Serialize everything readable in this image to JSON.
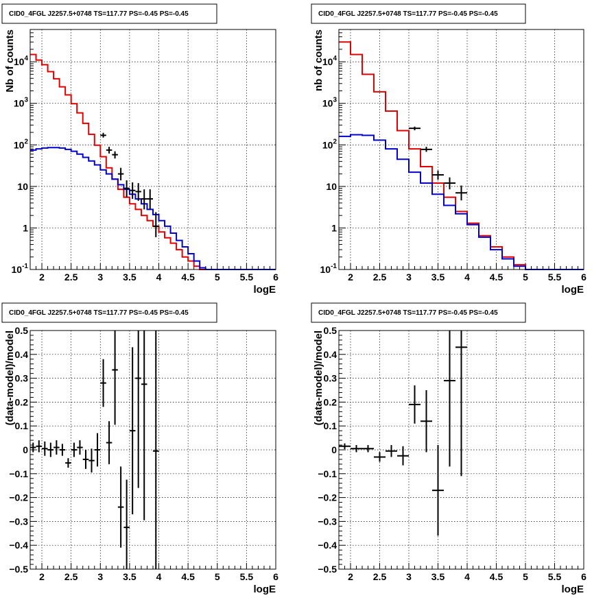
{
  "colors": {
    "data": "#000000",
    "total_model": "#e00000",
    "component_model": "#0000cc"
  },
  "chart_data": [
    {
      "type": "line",
      "title": "CID0_4FGL J2257.5+0748 TS=117.77 PS=-0.45 PS=-0.45",
      "xlabel": "logE",
      "ylabel": "Nb of counts",
      "log_y": true,
      "xlim": [
        1.8,
        6.0
      ],
      "ylim": [
        0.1,
        60000
      ],
      "grid": true,
      "x_ticks": [
        2,
        2.5,
        3,
        3.5,
        4,
        4.5,
        5,
        5.5,
        6
      ],
      "x_tick_labels": [
        "2",
        "2.5",
        "3",
        "3.5",
        "4",
        "4.5",
        "5",
        "5.5",
        "6"
      ],
      "y_ticks": [
        0.1,
        1,
        10,
        100,
        1000,
        10000
      ],
      "y_tick_labels": [
        "10-1",
        "1",
        "10",
        "10^2",
        "10^3",
        "10^4"
      ],
      "bin_edges": [
        1.8,
        1.9,
        2.0,
        2.1,
        2.2,
        2.3,
        2.4,
        2.5,
        2.6,
        2.7,
        2.8,
        2.9,
        3.0,
        3.1,
        3.2,
        3.3,
        3.4,
        3.5,
        3.6,
        3.7,
        3.8,
        3.9,
        4.0,
        4.1,
        4.2,
        4.3,
        4.4,
        4.5,
        4.6,
        4.7,
        4.8,
        4.9,
        5.0,
        5.1,
        5.2,
        5.3,
        5.4,
        5.5,
        5.6,
        5.7,
        5.8,
        5.9,
        6.0
      ],
      "series": [
        {
          "role": "total_model",
          "style": "step",
          "values": [
            15000,
            11000,
            8500,
            5800,
            3900,
            2500,
            1600,
            980,
            590,
            330,
            180,
            98,
            52,
            28,
            15,
            8.5,
            5.5,
            3.8,
            2.8,
            2.0,
            1.5,
            1.1,
            0.8,
            0.58,
            0.43,
            0.3,
            0.2,
            0.16,
            0.12,
            0.1,
            0.1,
            0.1,
            0.1,
            0.1,
            0.1,
            0.1,
            0.1,
            0.1,
            0.1,
            0.1,
            0.1,
            0.1
          ]
        },
        {
          "role": "component_model",
          "style": "step",
          "values": [
            75,
            80,
            84,
            86,
            86,
            84,
            78,
            70,
            60,
            50,
            41,
            33,
            25,
            20,
            15,
            11,
            8.5,
            6.5,
            5.0,
            3.8,
            2.8,
            2.1,
            1.5,
            1.1,
            0.75,
            0.5,
            0.35,
            0.24,
            0.16,
            0.11,
            0.1,
            0.1,
            0.1,
            0.1,
            0.1,
            0.1,
            0.1,
            0.1,
            0.1,
            0.1,
            0.1,
            0.1
          ]
        },
        {
          "role": "data",
          "style": "errorbar",
          "points": [
            {
              "x": 3.05,
              "y": 170,
              "xerr": 0.05,
              "ylo": 150,
              "yhi": 195
            },
            {
              "x": 3.15,
              "y": 75,
              "xerr": 0.05,
              "ylo": 62,
              "yhi": 90
            },
            {
              "x": 3.25,
              "y": 58,
              "xerr": 0.05,
              "ylo": 47,
              "yhi": 70
            },
            {
              "x": 3.35,
              "y": 20,
              "xerr": 0.05,
              "ylo": 14,
              "yhi": 28
            },
            {
              "x": 3.45,
              "y": 9,
              "xerr": 0.05,
              "ylo": 5.5,
              "yhi": 14
            },
            {
              "x": 3.55,
              "y": 8,
              "xerr": 0.05,
              "ylo": 5,
              "yhi": 12.5
            },
            {
              "x": 3.65,
              "y": 7.5,
              "xerr": 0.05,
              "ylo": 4.5,
              "yhi": 12
            },
            {
              "x": 3.75,
              "y": 5,
              "xerr": 0.05,
              "ylo": 2.8,
              "yhi": 8.5
            },
            {
              "x": 3.85,
              "y": 5,
              "xerr": 0.05,
              "ylo": 2.8,
              "yhi": 8.5
            },
            {
              "x": 3.95,
              "y": 1.1,
              "xerr": 0.05,
              "ylo": 0.6,
              "yhi": 2.4
            }
          ]
        }
      ]
    },
    {
      "type": "line",
      "title": "CID0_4FGL J2257.5+0748 TS=117.77 PS=-0.45 PS=-0.45",
      "xlabel": "logE",
      "ylabel": "nb of counts",
      "log_y": true,
      "xlim": [
        1.8,
        6.0
      ],
      "ylim": [
        0.1,
        60000
      ],
      "grid": true,
      "x_ticks": [
        2,
        2.5,
        3,
        3.5,
        4,
        4.5,
        5,
        5.5,
        6
      ],
      "x_tick_labels": [
        "2",
        "2.5",
        "3",
        "3.5",
        "4",
        "4.5",
        "5",
        "5.5",
        "6"
      ],
      "y_ticks": [
        0.1,
        1,
        10,
        100,
        1000,
        10000
      ],
      "y_tick_labels": [
        "10-1",
        "1",
        "10",
        "10^2",
        "10^3",
        "10^4"
      ],
      "bin_edges": [
        1.8,
        2.0,
        2.2,
        2.4,
        2.6,
        2.8,
        3.0,
        3.2,
        3.4,
        3.6,
        3.8,
        4.0,
        4.2,
        4.4,
        4.6,
        4.8,
        5.0,
        5.2,
        5.4,
        5.6,
        5.8,
        6.0
      ],
      "series": [
        {
          "role": "total_model",
          "style": "step",
          "values": [
            30000,
            15000,
            5000,
            1900,
            650,
            220,
            80,
            30,
            12,
            5.5,
            2.5,
            1.3,
            0.65,
            0.35,
            0.2,
            0.13,
            0.1,
            0.1,
            0.1,
            0.1,
            0.1
          ]
        },
        {
          "role": "component_model",
          "style": "step",
          "values": [
            160,
            175,
            170,
            130,
            80,
            45,
            22,
            12,
            6.5,
            3.5,
            2.2,
            1.2,
            0.6,
            0.3,
            0.18,
            0.12,
            0.1,
            0.1,
            0.1,
            0.1,
            0.1
          ]
        },
        {
          "role": "data",
          "style": "errorbar",
          "points": [
            {
              "x": 3.1,
              "y": 250,
              "xerr": 0.1,
              "ylo": 225,
              "yhi": 275
            },
            {
              "x": 3.3,
              "y": 78,
              "xerr": 0.1,
              "ylo": 68,
              "yhi": 90
            },
            {
              "x": 3.5,
              "y": 19,
              "xerr": 0.1,
              "ylo": 14.5,
              "yhi": 24
            },
            {
              "x": 3.7,
              "y": 12,
              "xerr": 0.1,
              "ylo": 8.5,
              "yhi": 16.5
            },
            {
              "x": 3.9,
              "y": 7,
              "xerr": 0.1,
              "ylo": 4.6,
              "yhi": 10.5
            }
          ]
        }
      ]
    },
    {
      "type": "scatter",
      "title": "CID0_4FGL J2257.5+0748 TS=117.77 PS=-0.45 PS=-0.45",
      "xlabel": "logE",
      "ylabel": "(data-model)/model",
      "xlim": [
        1.8,
        6.0
      ],
      "ylim": [
        -0.5,
        0.5
      ],
      "grid": true,
      "x_ticks": [
        2,
        2.5,
        3,
        3.5,
        4,
        4.5,
        5,
        5.5,
        6
      ],
      "x_tick_labels": [
        "2",
        "2.5",
        "3",
        "3.5",
        "4",
        "4.5",
        "5",
        "5.5",
        "6"
      ],
      "y_ticks": [
        -0.5,
        -0.4,
        -0.3,
        -0.2,
        -0.1,
        0,
        0.1,
        0.2,
        0.3,
        0.4,
        0.5
      ],
      "y_tick_labels": [
        "−0.5",
        "−0.4",
        "−0.3",
        "−0.2",
        "−0.1",
        "0",
        "0.1",
        "0.2",
        "0.3",
        "0.4",
        "0.5"
      ],
      "series": [
        {
          "role": "data",
          "style": "errorbar",
          "points": [
            {
              "x": 1.85,
              "y": 0.01,
              "xerr": 0.05,
              "yerr": 0.02
            },
            {
              "x": 1.95,
              "y": 0.015,
              "xerr": 0.05,
              "yerr": 0.025
            },
            {
              "x": 2.05,
              "y": 0.005,
              "xerr": 0.05,
              "yerr": 0.03
            },
            {
              "x": 2.15,
              "y": 0.0,
              "xerr": 0.05,
              "yerr": 0.03
            },
            {
              "x": 2.25,
              "y": 0.01,
              "xerr": 0.05,
              "yerr": 0.03
            },
            {
              "x": 2.35,
              "y": 0.0,
              "xerr": 0.05,
              "yerr": 0.025
            },
            {
              "x": 2.45,
              "y": -0.055,
              "xerr": 0.05,
              "yerr": 0.02
            },
            {
              "x": 2.55,
              "y": 0.0,
              "xerr": 0.05,
              "yerr": 0.03
            },
            {
              "x": 2.65,
              "y": 0.01,
              "xerr": 0.05,
              "yerr": 0.03
            },
            {
              "x": 2.75,
              "y": -0.04,
              "xerr": 0.05,
              "yerr": 0.04
            },
            {
              "x": 2.85,
              "y": -0.045,
              "xerr": 0.05,
              "yerr": 0.05
            },
            {
              "x": 2.95,
              "y": 0.0,
              "xerr": 0.05,
              "yerr": 0.07
            },
            {
              "x": 3.05,
              "y": 0.28,
              "xerr": 0.05,
              "yerr": 0.1
            },
            {
              "x": 3.15,
              "y": 0.03,
              "xerr": 0.05,
              "yerr": 0.09
            },
            {
              "x": 3.25,
              "y": 0.335,
              "xerr": 0.05,
              "yerr": 0.23
            },
            {
              "x": 3.35,
              "y": -0.24,
              "xerr": 0.05,
              "yerr": 0.17
            },
            {
              "x": 3.45,
              "y": -0.325,
              "xerr": 0.05,
              "yerr": 0.2
            },
            {
              "x": 3.55,
              "y": 0.08,
              "xerr": 0.05,
              "yerr": 0.35
            },
            {
              "x": 3.65,
              "y": 0.3,
              "xerr": 0.05,
              "yerr": 0.46
            },
            {
              "x": 3.75,
              "y": 0.275,
              "xerr": 0.05,
              "yerr": 0.57
            },
            {
              "x": 3.95,
              "y": -0.005,
              "xerr": 0.05,
              "yerr": 0.9
            }
          ]
        }
      ]
    },
    {
      "type": "scatter",
      "title": "CID0_4FGL J2257.5+0748 TS=117.77 PS=-0.45 PS=-0.45",
      "xlabel": "logE",
      "ylabel": "(data-model)/model",
      "xlim": [
        1.8,
        6.0
      ],
      "ylim": [
        -0.5,
        0.5
      ],
      "grid": true,
      "x_ticks": [
        2,
        2.5,
        3,
        3.5,
        4,
        4.5,
        5,
        5.5,
        6
      ],
      "x_tick_labels": [
        "2",
        "2.5",
        "3",
        "3.5",
        "4",
        "4.5",
        "5",
        "5.5",
        "6"
      ],
      "y_ticks": [
        -0.5,
        -0.4,
        -0.3,
        -0.2,
        -0.1,
        0,
        0.1,
        0.2,
        0.3,
        0.4,
        0.5
      ],
      "y_tick_labels": [
        "−0.5",
        "−0.4",
        "−0.3",
        "−0.2",
        "−0.1",
        "0",
        "0.1",
        "0.2",
        "0.3",
        "0.4",
        "0.5"
      ],
      "series": [
        {
          "role": "data",
          "style": "errorbar",
          "points": [
            {
              "x": 1.9,
              "y": 0.015,
              "xerr": 0.1,
              "yerr": 0.012
            },
            {
              "x": 2.1,
              "y": 0.005,
              "xerr": 0.1,
              "yerr": 0.015
            },
            {
              "x": 2.3,
              "y": 0.005,
              "xerr": 0.1,
              "yerr": 0.015
            },
            {
              "x": 2.5,
              "y": -0.03,
              "xerr": 0.1,
              "yerr": 0.02
            },
            {
              "x": 2.7,
              "y": -0.005,
              "xerr": 0.1,
              "yerr": 0.025
            },
            {
              "x": 2.9,
              "y": -0.025,
              "xerr": 0.1,
              "yerr": 0.04
            },
            {
              "x": 3.1,
              "y": 0.19,
              "xerr": 0.1,
              "yerr": 0.08
            },
            {
              "x": 3.3,
              "y": 0.12,
              "xerr": 0.1,
              "yerr": 0.13
            },
            {
              "x": 3.5,
              "y": -0.17,
              "xerr": 0.1,
              "yerr": 0.19
            },
            {
              "x": 3.7,
              "y": 0.29,
              "xerr": 0.1,
              "yerr": 0.36
            },
            {
              "x": 3.9,
              "y": 0.43,
              "xerr": 0.1,
              "yerr": 0.54
            }
          ]
        }
      ]
    }
  ]
}
